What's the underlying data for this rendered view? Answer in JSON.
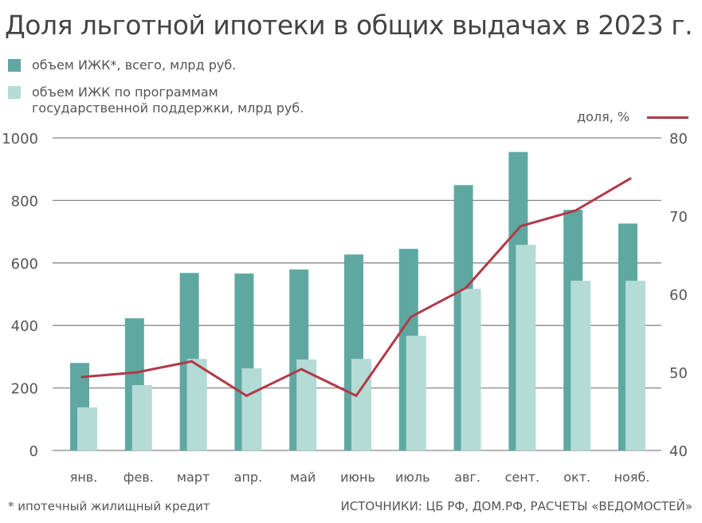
{
  "title": "Доля льготной ипотеки в общих выдачах в 2023 г.",
  "footnote": "* ипотечный жилищный кредит",
  "source": "ИСТОЧНИКИ: ЦБ РФ, ДОМ.РФ, РАСЧЕТЫ «ВЕДОМОСТЕЙ»",
  "colors": {
    "total": "#5fa8a1",
    "gov": "#b4dbd6",
    "share": "#b03a48",
    "grid": "#888888"
  },
  "chart_data": {
    "type": "bar",
    "title": "Доля льготной ипотеки в общих выдачах в 2023 г.",
    "categories": [
      "янв.",
      "фев.",
      "март",
      "апр.",
      "май",
      "июнь",
      "июль",
      "авг.",
      "сент.",
      "окт.",
      "нояб."
    ],
    "series": [
      {
        "name": "объем ИЖК*, всего, млрд руб.",
        "type": "bar",
        "axis": "left",
        "values": [
          280,
          423,
          568,
          566,
          579,
          627,
          645,
          849,
          955,
          770,
          726
        ]
      },
      {
        "name_line1": "объем ИЖК по программам",
        "name_line2": "государственной поддержки, млрд руб.",
        "type": "bar",
        "axis": "left",
        "values": [
          138,
          209,
          293,
          263,
          291,
          293,
          367,
          517,
          658,
          543,
          543
        ]
      },
      {
        "name": "доля, %",
        "type": "line",
        "axis": "right",
        "values": [
          49.4,
          50.0,
          51.4,
          47.0,
          50.4,
          47.0,
          57.1,
          60.8,
          68.7,
          70.7,
          74.8
        ]
      }
    ],
    "y_left": {
      "range": [
        0,
        1000
      ],
      "ticks": [
        "0",
        "200",
        "400",
        "600",
        "800",
        "1000"
      ]
    },
    "y_right": {
      "range": [
        40,
        80
      ],
      "ticks": [
        "40",
        "50",
        "60",
        "70",
        "80"
      ]
    },
    "grid": true,
    "legend": "top-left"
  }
}
